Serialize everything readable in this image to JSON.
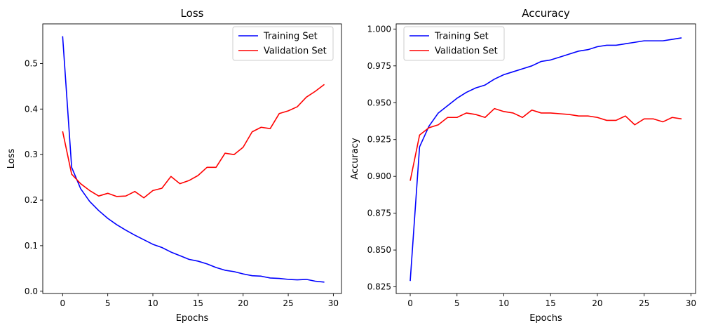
{
  "chart_data": [
    {
      "type": "line",
      "title": "Loss",
      "xlabel": "Epochs",
      "ylabel": "Loss",
      "xlim": [
        -2.2,
        30.9
      ],
      "ylim": [
        -0.005,
        0.587
      ],
      "xticks": [
        0,
        5,
        10,
        15,
        20,
        25,
        30
      ],
      "yticks": [
        0.0,
        0.1,
        0.2,
        0.3,
        0.4,
        0.5
      ],
      "ytick_labels": [
        "0.0",
        "0.1",
        "0.2",
        "0.3",
        "0.4",
        "0.5"
      ],
      "legend": "top-right",
      "grid": false,
      "x": [
        0,
        1,
        2,
        3,
        4,
        5,
        6,
        7,
        8,
        9,
        10,
        11,
        12,
        13,
        14,
        15,
        16,
        17,
        18,
        19,
        20,
        21,
        22,
        23,
        24,
        25,
        26,
        27,
        28,
        29
      ],
      "series": [
        {
          "name": "Training Set",
          "color": "#0000ff",
          "values": [
            0.56,
            0.272,
            0.225,
            0.197,
            0.177,
            0.16,
            0.146,
            0.134,
            0.123,
            0.113,
            0.103,
            0.096,
            0.086,
            0.078,
            0.07,
            0.066,
            0.06,
            0.052,
            0.046,
            0.043,
            0.038,
            0.034,
            0.033,
            0.029,
            0.028,
            0.026,
            0.025,
            0.026,
            0.022,
            0.02
          ]
        },
        {
          "name": "Validation Set",
          "color": "#ff0000",
          "values": [
            0.351,
            0.257,
            0.236,
            0.221,
            0.209,
            0.215,
            0.208,
            0.209,
            0.219,
            0.205,
            0.221,
            0.226,
            0.252,
            0.236,
            0.243,
            0.254,
            0.272,
            0.272,
            0.303,
            0.3,
            0.316,
            0.35,
            0.36,
            0.357,
            0.39,
            0.396,
            0.405,
            0.426,
            0.439,
            0.454
          ]
        }
      ]
    },
    {
      "type": "line",
      "title": "Accuracy",
      "xlabel": "Epochs",
      "ylabel": "Accuracy",
      "xlim": [
        -1.5,
        30.5
      ],
      "ylim": [
        0.8205,
        1.0035
      ],
      "xticks": [
        0,
        5,
        10,
        15,
        20,
        25,
        30
      ],
      "yticks": [
        0.825,
        0.85,
        0.875,
        0.9,
        0.925,
        0.95,
        0.975,
        1.0
      ],
      "ytick_labels": [
        "0.825",
        "0.850",
        "0.875",
        "0.900",
        "0.925",
        "0.950",
        "0.975",
        "1.000"
      ],
      "legend": "top-left",
      "grid": false,
      "x": [
        0,
        1,
        2,
        3,
        4,
        5,
        6,
        7,
        8,
        9,
        10,
        11,
        12,
        13,
        14,
        15,
        16,
        17,
        18,
        19,
        20,
        21,
        22,
        23,
        24,
        25,
        26,
        27,
        28,
        29
      ],
      "series": [
        {
          "name": "Training Set",
          "color": "#0000ff",
          "values": [
            0.829,
            0.92,
            0.934,
            0.943,
            0.948,
            0.953,
            0.957,
            0.96,
            0.962,
            0.966,
            0.969,
            0.971,
            0.973,
            0.975,
            0.978,
            0.979,
            0.981,
            0.983,
            0.985,
            0.986,
            0.988,
            0.989,
            0.989,
            0.99,
            0.991,
            0.992,
            0.992,
            0.992,
            0.993,
            0.994
          ]
        },
        {
          "name": "Validation Set",
          "color": "#ff0000",
          "values": [
            0.897,
            0.928,
            0.933,
            0.935,
            0.94,
            0.94,
            0.943,
            0.942,
            0.94,
            0.946,
            0.944,
            0.943,
            0.94,
            0.945,
            0.943,
            0.943,
            0.9425,
            0.942,
            0.941,
            0.941,
            0.94,
            0.938,
            0.938,
            0.941,
            0.935,
            0.939,
            0.939,
            0.937,
            0.94,
            0.939
          ]
        }
      ]
    }
  ]
}
